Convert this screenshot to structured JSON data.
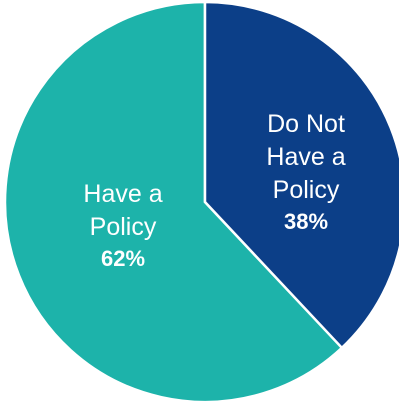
{
  "chart_data": {
    "type": "pie",
    "title": "",
    "slices": [
      {
        "label_lines": [
          "Have a",
          "Policy"
        ],
        "percent_label": "62%",
        "value": 62,
        "color": "#1db3aa"
      },
      {
        "label_lines": [
          "Do Not",
          "Have a",
          "Policy"
        ],
        "percent_label": "38%",
        "value": 38,
        "color": "#0c3f88"
      }
    ],
    "start_position": "12 o'clock",
    "direction": "counterclockwise for the 62% slice",
    "slice_border_color": "#ffffff"
  }
}
